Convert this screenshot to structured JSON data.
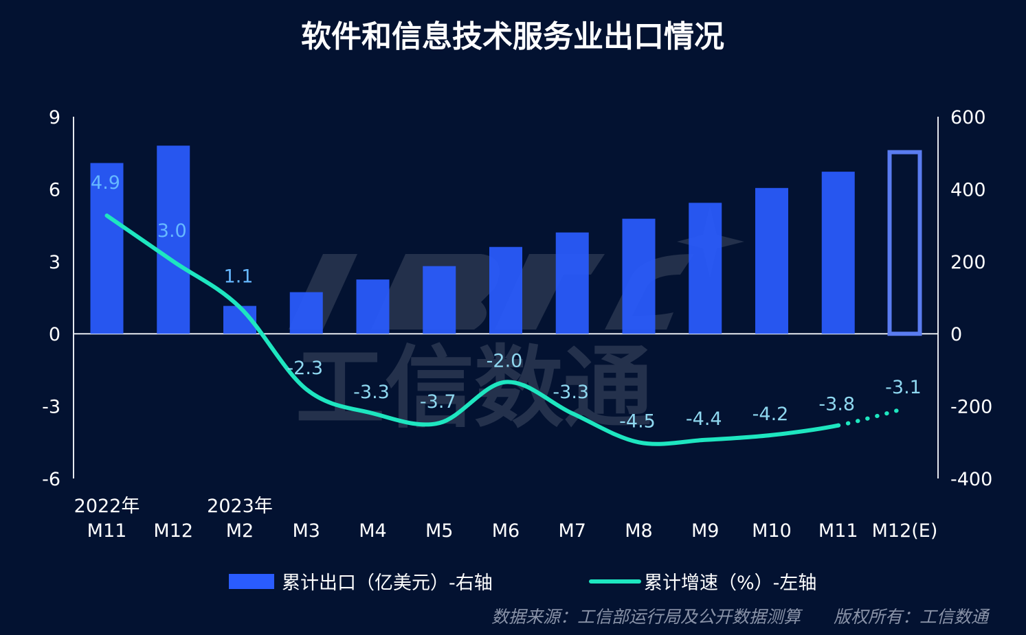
{
  "title": "软件和信息技术服务业出口情况",
  "source": "数据来源：工信部运行局及公开数据测算",
  "copyright": "版权所有：工信数通",
  "watermark": "工信数通",
  "colors": {
    "background": "#031231",
    "bar": "#2a5cff",
    "bar_estimate_border": "#5a7cf0",
    "line": "#1ee6c0",
    "label": "#66b8ff"
  },
  "chart_data": {
    "type": "bar",
    "categories": [
      "M11",
      "M12",
      "M2",
      "M3",
      "M4",
      "M5",
      "M6",
      "M7",
      "M8",
      "M9",
      "M10",
      "M11",
      "M12(E)"
    ],
    "year_labels": [
      "2022年",
      "",
      "2023年",
      "",
      "",
      "",
      "",
      "",
      "",
      "",
      "",
      "",
      ""
    ],
    "left_axis": {
      "ylim": [
        -6,
        9
      ],
      "ticks": [
        "9",
        "6",
        "3",
        "0",
        "-3",
        "-6"
      ]
    },
    "right_axis": {
      "ylim": [
        -400,
        600
      ],
      "ticks": [
        "600",
        "400",
        "200",
        "0",
        "-200",
        "-400"
      ]
    },
    "series": [
      {
        "name": "累计出口（亿美元）-右轴",
        "type": "bar",
        "axis": "right",
        "values": [
          472,
          520,
          77,
          115,
          150,
          187,
          240,
          280,
          318,
          362,
          403,
          448,
          502
        ],
        "estimated_last": true
      },
      {
        "name": "累计增速（%）-左轴",
        "type": "line",
        "axis": "left",
        "values": [
          4.9,
          3.0,
          1.1,
          -2.3,
          -3.3,
          -3.7,
          -2.0,
          -3.3,
          -4.5,
          -4.4,
          -4.2,
          -3.8,
          -3.1
        ],
        "labels": [
          "4.9",
          "3.0",
          "1.1",
          "-2.3",
          "-3.3",
          "-3.7",
          "-2.0",
          "-3.3",
          "-4.5",
          "-4.4",
          "-4.2",
          "-3.8",
          "-3.1"
        ],
        "estimated_last": true
      }
    ],
    "legend_position": "bottom",
    "grid": false
  }
}
